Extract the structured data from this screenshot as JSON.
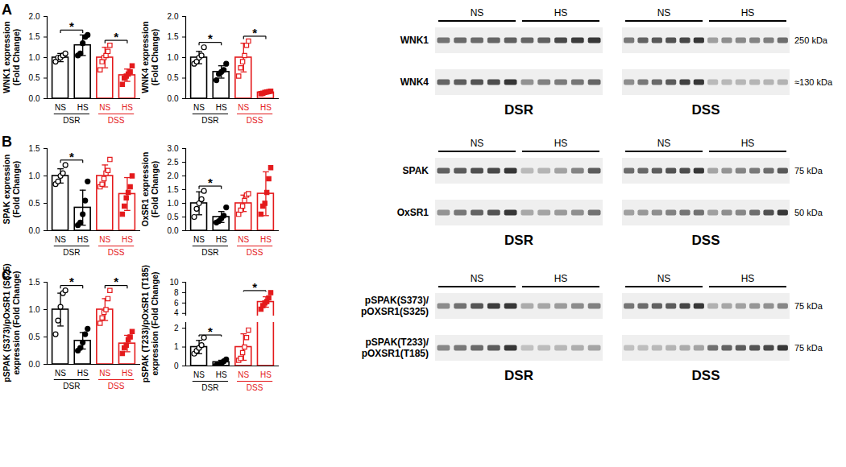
{
  "chart_data": [
    {
      "type": "bar",
      "ylabel": [
        "WNK1 expression",
        "(Fold Change)"
      ],
      "categories": [
        "NS",
        "HS"
      ],
      "ylim": [
        0,
        2
      ],
      "yticks": [
        {
          "value": 0,
          "label": "0.0"
        },
        0.5,
        {
          "value": 1,
          "label": "1.0"
        },
        1.5,
        {
          "value": 2,
          "label": "2.0"
        }
      ],
      "series": [
        {
          "name": "DSR",
          "color": "#000000",
          "marker": "circle",
          "values": [
            1.0,
            1.3
          ],
          "sd": [
            0.1,
            0.25
          ],
          "points": [
            [
              0.9,
              1.0,
              1.0,
              1.05,
              1.1
            ],
            [
              1.05,
              1.1,
              1.35,
              1.5,
              1.55
            ]
          ]
        },
        {
          "name": "DSS",
          "color": "#e41a1c",
          "marker": "square",
          "values": [
            1.0,
            0.57
          ],
          "sd": [
            0.25,
            0.15
          ],
          "points": [
            [
              0.7,
              0.9,
              1.0,
              1.05,
              1.15,
              1.3
            ],
            [
              0.35,
              0.5,
              0.55,
              0.6,
              0.65,
              0.8
            ]
          ]
        }
      ],
      "annotations": [
        {
          "series": "DSR",
          "text": "*"
        },
        {
          "series": "DSS",
          "text": "*"
        }
      ]
    },
    {
      "type": "bar",
      "ylabel": [
        "WNK4 expression",
        "(Fold Change)"
      ],
      "categories": [
        "NS",
        "HS"
      ],
      "ylim": [
        0,
        2
      ],
      "yticks": [
        {
          "value": 0,
          "label": "0.0"
        },
        0.5,
        {
          "value": 1,
          "label": "1.0"
        },
        1.5,
        {
          "value": 2,
          "label": "2.0"
        }
      ],
      "series": [
        {
          "name": "DSR",
          "color": "#000000",
          "marker": "circle",
          "values": [
            1.0,
            0.65
          ],
          "sd": [
            0.15,
            0.15
          ],
          "points": [
            [
              0.85,
              0.9,
              1.0,
              1.05,
              1.25
            ],
            [
              0.45,
              0.6,
              0.65,
              0.7,
              0.85
            ]
          ]
        },
        {
          "name": "DSS",
          "color": "#e41a1c",
          "marker": "square",
          "values": [
            1.0,
            0.15
          ],
          "sd": [
            0.35,
            0.03
          ],
          "points": [
            [
              0.55,
              0.75,
              0.9,
              1.05,
              1.3,
              1.4
            ],
            [
              0.12,
              0.13,
              0.15,
              0.16,
              0.17,
              0.18
            ]
          ]
        }
      ],
      "annotations": [
        {
          "series": "DSR",
          "text": "*"
        },
        {
          "series": "DSS",
          "text": "*"
        }
      ]
    },
    {
      "type": "bar",
      "ylabel": [
        "SPAK expression",
        "(Fold Change)"
      ],
      "categories": [
        "NS",
        "HS"
      ],
      "ylim": [
        0,
        1.5
      ],
      "yticks": [
        {
          "value": 0,
          "label": "0.0"
        },
        0.5,
        {
          "value": 1,
          "label": "1.0"
        },
        1.5
      ],
      "series": [
        {
          "name": "DSR",
          "color": "#000000",
          "marker": "circle",
          "values": [
            1.0,
            0.42
          ],
          "sd": [
            0.13,
            0.32
          ],
          "points": [
            [
              0.85,
              0.9,
              1.0,
              1.05,
              1.2
            ],
            [
              0.1,
              0.15,
              0.3,
              0.55,
              0.9
            ]
          ]
        },
        {
          "name": "DSS",
          "color": "#e41a1c",
          "marker": "square",
          "values": [
            1.0,
            0.67
          ],
          "sd": [
            0.2,
            0.3
          ],
          "points": [
            [
              0.8,
              0.85,
              0.95,
              1.05,
              1.1,
              1.3
            ],
            [
              0.3,
              0.45,
              0.6,
              0.7,
              0.8,
              1.0
            ]
          ]
        }
      ],
      "annotations": [
        {
          "series": "DSR",
          "text": "*"
        }
      ]
    },
    {
      "type": "bar",
      "ylabel": [
        "OxSR1 expression",
        "(Fold Change)"
      ],
      "categories": [
        "NS",
        "HS"
      ],
      "ylim": [
        0,
        3
      ],
      "yticks": [
        {
          "value": 0,
          "label": "0.0"
        },
        0.5,
        {
          "value": 1,
          "label": "1.0"
        },
        1.5,
        {
          "value": 2,
          "label": "2.0"
        },
        2.5,
        {
          "value": 3,
          "label": "3.0"
        }
      ],
      "series": [
        {
          "name": "DSR",
          "color": "#000000",
          "marker": "circle",
          "values": [
            1.0,
            0.5
          ],
          "sd": [
            0.42,
            0.2
          ],
          "points": [
            [
              0.5,
              0.8,
              1.0,
              1.15,
              1.45
            ],
            [
              0.3,
              0.35,
              0.45,
              0.55,
              0.85
            ]
          ]
        },
        {
          "name": "DSS",
          "color": "#e41a1c",
          "marker": "square",
          "values": [
            1.0,
            1.35
          ],
          "sd": [
            0.3,
            0.8
          ],
          "points": [
            [
              0.6,
              0.75,
              0.9,
              1.1,
              1.3,
              1.35
            ],
            [
              0.6,
              0.9,
              1.0,
              1.4,
              1.9,
              2.3
            ]
          ]
        }
      ],
      "annotations": [
        {
          "series": "DSR",
          "text": "*"
        }
      ]
    },
    {
      "type": "bar",
      "ylabel": [
        "pSPAK (S373)/pOxSR1 (S325)",
        "expression (Fold Change)"
      ],
      "categories": [
        "NS",
        "HS"
      ],
      "ylim": [
        0,
        1.5
      ],
      "yticks": [
        {
          "value": 0,
          "label": "0.0"
        },
        0.5,
        {
          "value": 1,
          "label": "1.0"
        },
        1.5
      ],
      "series": [
        {
          "name": "DSR",
          "color": "#000000",
          "marker": "circle",
          "values": [
            1.0,
            0.43
          ],
          "sd": [
            0.3,
            0.15
          ],
          "points": [
            [
              0.55,
              0.8,
              1.05,
              1.3,
              1.35
            ],
            [
              0.25,
              0.3,
              0.4,
              0.55,
              0.65
            ]
          ]
        },
        {
          "name": "DSS",
          "color": "#e41a1c",
          "marker": "square",
          "values": [
            1.0,
            0.38
          ],
          "sd": [
            0.2,
            0.15
          ],
          "points": [
            [
              0.75,
              0.85,
              0.95,
              1.0,
              1.2,
              1.35
            ],
            [
              0.2,
              0.3,
              0.35,
              0.45,
              0.5,
              0.6
            ]
          ]
        }
      ],
      "annotations": [
        {
          "series": "DSR",
          "text": "*"
        },
        {
          "series": "DSS",
          "text": "*"
        }
      ]
    },
    {
      "type": "bar",
      "ylabel": [
        "pSPAK (T233)/pOxSR1 (T185)",
        "expression (Fold Change)"
      ],
      "categories": [
        "NS",
        "HS"
      ],
      "ylim": [
        0,
        10
      ],
      "yticks": [
        0,
        1,
        2,
        4,
        6,
        8,
        10
      ],
      "y_break": [
        2.3,
        3.5
      ],
      "series": [
        {
          "name": "DSR",
          "color": "#000000",
          "marker": "circle",
          "values": [
            1.0,
            0.2
          ],
          "sd": [
            0.35,
            0.1
          ],
          "points": [
            [
              0.65,
              0.8,
              0.95,
              1.1,
              1.5
            ],
            [
              0.05,
              0.1,
              0.15,
              0.25,
              0.35
            ]
          ]
        },
        {
          "name": "DSS",
          "color": "#e41a1c",
          "marker": "square",
          "values": [
            1.0,
            6.2
          ],
          "sd": [
            0.7,
            1.0
          ],
          "points": [
            [
              0.3,
              0.4,
              0.7,
              1.0,
              1.5,
              1.9
            ],
            [
              4.8,
              5.5,
              6.0,
              6.3,
              7.0,
              8.0
            ]
          ]
        }
      ],
      "annotations": [
        {
          "series": "DSR",
          "text": "*"
        },
        {
          "series": "DSS",
          "text": "*"
        }
      ]
    }
  ],
  "panels": [
    "A",
    "B",
    "C"
  ],
  "blots": [
    {
      "conditions": [
        "NS",
        "HS"
      ],
      "groups": [
        "DSR",
        "DSS"
      ],
      "rows": [
        {
          "label": [
            "WNK1"
          ],
          "kda": "250 kDa"
        },
        {
          "label": [
            "WNK4"
          ],
          "kda": "≈130 kDa"
        }
      ]
    },
    {
      "conditions": [
        "NS",
        "HS"
      ],
      "groups": [
        "DSR",
        "DSS"
      ],
      "rows": [
        {
          "label": [
            "SPAK"
          ],
          "kda": "75 kDa"
        },
        {
          "label": [
            "OxSR1"
          ],
          "kda": "50 kDa"
        }
      ]
    },
    {
      "conditions": [
        "NS",
        "HS"
      ],
      "groups": [
        "DSR",
        "DSS"
      ],
      "rows": [
        {
          "label": [
            "pSPAK(S373)/",
            "pOXSR1(S325)"
          ],
          "kda": "75 kDa"
        },
        {
          "label": [
            "pSPAK(T233)/",
            "pOXSR1(T185)"
          ],
          "kda": "75 kDa"
        }
      ]
    }
  ]
}
